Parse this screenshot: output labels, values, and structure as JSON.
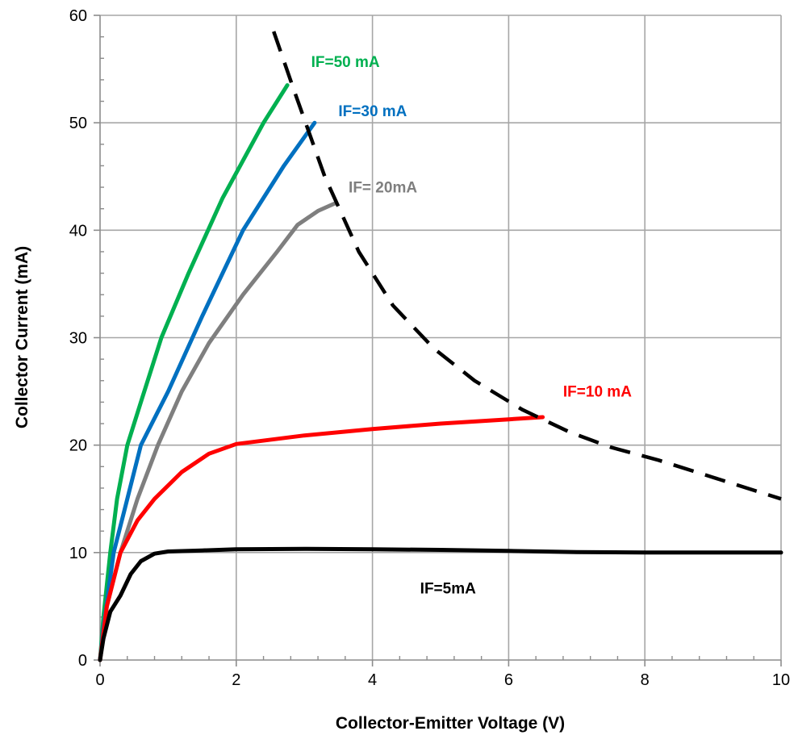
{
  "chart_data": {
    "type": "line",
    "title": "",
    "xlabel": "Collector-Emitter Voltage (V)",
    "ylabel": "Collector Current  (mA)",
    "xlim": [
      0,
      10
    ],
    "ylim": [
      0,
      60
    ],
    "x_ticks": [
      "0",
      "2",
      "4",
      "6",
      "8",
      "10"
    ],
    "y_ticks": [
      "0",
      "10",
      "20",
      "30",
      "40",
      "50",
      "60"
    ],
    "grid": true,
    "legend": "none",
    "series": [
      {
        "name": "IF=50 mA",
        "color": "#00b050",
        "style": "solid",
        "x": [
          0,
          0.05,
          0.15,
          0.25,
          0.4,
          0.6,
          0.9,
          1.3,
          1.8,
          2.4,
          2.75
        ],
        "y": [
          0,
          4,
          10,
          15,
          20,
          24,
          30,
          36,
          43,
          50,
          53.5
        ]
      },
      {
        "name": "IF=30 mA",
        "color": "#0070c0",
        "style": "solid",
        "x": [
          0,
          0.05,
          0.2,
          0.4,
          0.6,
          1.0,
          1.5,
          2.1,
          2.7,
          3.15
        ],
        "y": [
          0,
          3,
          10,
          15,
          20,
          25,
          32,
          40,
          46,
          50
        ]
      },
      {
        "name": "IF= 20mA",
        "color": "#7f7f7f",
        "style": "solid",
        "x": [
          0,
          0.1,
          0.3,
          0.55,
          0.85,
          1.2,
          1.6,
          2.1,
          2.6,
          2.9,
          3.2,
          3.45
        ],
        "y": [
          0,
          5,
          10,
          15,
          20,
          25,
          29.5,
          34,
          38,
          40.5,
          41.8,
          42.5
        ]
      },
      {
        "name": "IF=10 mA",
        "color": "#ff0000",
        "style": "solid",
        "x": [
          0,
          0.1,
          0.3,
          0.55,
          0.8,
          1.2,
          1.6,
          2.0,
          3.0,
          4.0,
          5.0,
          6.0,
          6.5
        ],
        "y": [
          0,
          5,
          10,
          13,
          15,
          17.5,
          19.2,
          20.1,
          20.9,
          21.5,
          22,
          22.4,
          22.6
        ]
      },
      {
        "name": "IF=5mA",
        "color": "#000000",
        "style": "solid",
        "x": [
          0,
          0.05,
          0.15,
          0.3,
          0.45,
          0.6,
          0.8,
          1.0,
          1.5,
          2.0,
          3.0,
          4.0,
          5.0,
          6.0,
          7.0,
          8.0,
          9.0,
          10.0
        ],
        "y": [
          0,
          2,
          4.5,
          6,
          8,
          9.2,
          9.9,
          10.1,
          10.2,
          10.3,
          10.35,
          10.3,
          10.25,
          10.15,
          10.05,
          10.0,
          10.0,
          10.0
        ]
      },
      {
        "name": "",
        "color": "#000000",
        "style": "dashed",
        "x": [
          2.55,
          2.85,
          3.3,
          3.8,
          4.3,
          4.9,
          5.5,
          6.2,
          6.9,
          7.5,
          8.2,
          9.0,
          10.0
        ],
        "y": [
          58.5,
          53,
          45,
          38,
          33,
          29,
          26,
          23.3,
          21.2,
          19.8,
          18.6,
          17,
          15
        ]
      }
    ],
    "annotations": [
      {
        "text": "IF=50 mA",
        "x": 3.1,
        "y": 55.2,
        "color": "#00b050"
      },
      {
        "text": "IF=30 mA",
        "x": 3.5,
        "y": 50.6,
        "color": "#0070c0"
      },
      {
        "text": "IF= 20mA",
        "x": 3.65,
        "y": 43.5,
        "color": "#7f7f7f"
      },
      {
        "text": "IF=10 mA",
        "x": 6.8,
        "y": 24.5,
        "color": "#ff0000"
      },
      {
        "text": "IF=5mA",
        "x": 4.7,
        "y": 6.2,
        "color": "#000000"
      }
    ]
  }
}
